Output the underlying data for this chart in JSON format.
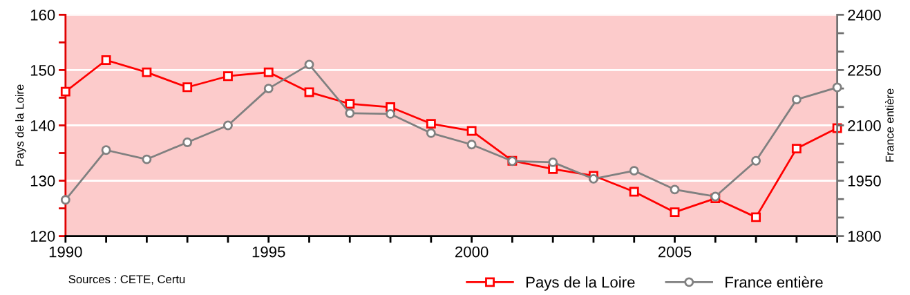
{
  "chart_data": {
    "type": "line",
    "x": [
      1990,
      1991,
      1992,
      1993,
      1994,
      1995,
      1996,
      1997,
      1998,
      1999,
      2000,
      2001,
      2002,
      2003,
      2004,
      2005,
      2006,
      2007,
      2008,
      2009
    ],
    "series": [
      {
        "name": "Pays de la Loire",
        "color": "#ff0000",
        "marker": "square",
        "values": [
          146.1,
          151.8,
          149.6,
          146.9,
          148.9,
          149.6,
          146.0,
          143.9,
          143.3,
          140.3,
          139.0,
          133.6,
          132.1,
          130.9,
          128.0,
          124.3,
          126.8,
          123.4,
          135.8,
          139.5
        ]
      },
      {
        "name": "France entière",
        "color": "#808080",
        "marker": "circle",
        "axis": "y2",
        "values": [
          1898,
          2033,
          2008,
          2054,
          2100,
          2200,
          2265,
          2133,
          2131,
          2079,
          2048,
          2003,
          2000,
          1955,
          1977,
          1926,
          1907,
          2004,
          2170,
          2203
        ]
      }
    ],
    "ylabel": "Pays de la Loire",
    "y2label": "France entière",
    "xlim": [
      1990,
      2009
    ],
    "xticks": [
      1990,
      {
        "value": 1991,
        "label": null
      },
      {
        "value": 1992,
        "label": null
      },
      {
        "value": 1993,
        "label": null
      },
      {
        "value": 1994,
        "label": null
      },
      1995,
      {
        "value": 1996,
        "label": null
      },
      {
        "value": 1997,
        "label": null
      },
      {
        "value": 1998,
        "label": null
      },
      {
        "value": 1999,
        "label": null
      },
      2000,
      {
        "value": 2001,
        "label": null
      },
      {
        "value": 2002,
        "label": null
      },
      {
        "value": 2003,
        "label": null
      },
      {
        "value": 2004,
        "label": null
      },
      2005,
      {
        "value": 2006,
        "label": null
      },
      {
        "value": 2007,
        "label": null
      },
      {
        "value": 2008,
        "label": null
      },
      {
        "value": 2009,
        "label": null
      }
    ],
    "ylim": [
      120,
      160
    ],
    "yticks": [
      120,
      {
        "value": 125,
        "label": null
      },
      130,
      {
        "value": 135,
        "label": null
      },
      140,
      {
        "value": 145,
        "label": null
      },
      150,
      {
        "value": 155,
        "label": null
      },
      160
    ],
    "y2lim": [
      1800,
      2400
    ],
    "y2ticks": [
      1800,
      {
        "value": 1850,
        "label": null
      },
      {
        "value": 1900,
        "label": null
      },
      1950,
      {
        "value": 2000,
        "label": null
      },
      {
        "value": 2050,
        "label": null
      },
      2100,
      {
        "value": 2150,
        "label": null
      },
      {
        "value": 2200,
        "label": null
      },
      2250,
      {
        "value": 2300,
        "label": null
      },
      {
        "value": 2350,
        "label": null
      },
      2400
    ],
    "grid": "y",
    "legend": "bottom right",
    "line_style": "solid",
    "annotations": [
      "Sources : CETE, Certu"
    ]
  }
}
